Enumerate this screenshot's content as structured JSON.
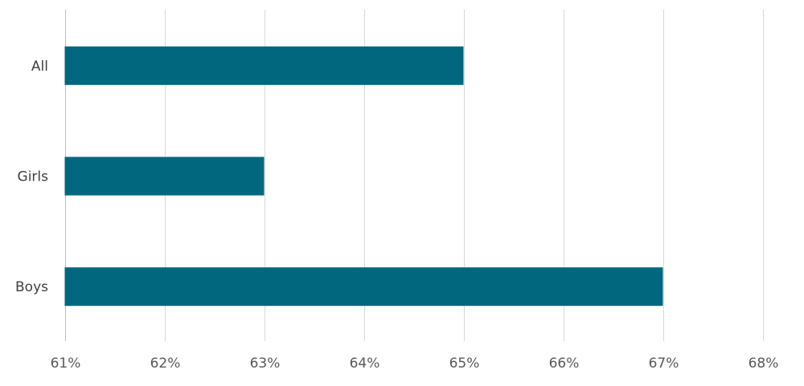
{
  "chart_data": {
    "type": "bar",
    "orientation": "horizontal",
    "categories": [
      "All",
      "Girls",
      "Boys"
    ],
    "values": [
      65,
      63,
      67
    ],
    "x_ticks": [
      "61%",
      "62%",
      "63%",
      "64%",
      "65%",
      "66%",
      "67%",
      "68%"
    ],
    "xlim": [
      61,
      68
    ],
    "unit": "%",
    "grid": true,
    "legend": "none",
    "colors": {
      "bar": "#00677F",
      "grid": "#D9D9D9",
      "axis": "#BFBFBF"
    }
  }
}
